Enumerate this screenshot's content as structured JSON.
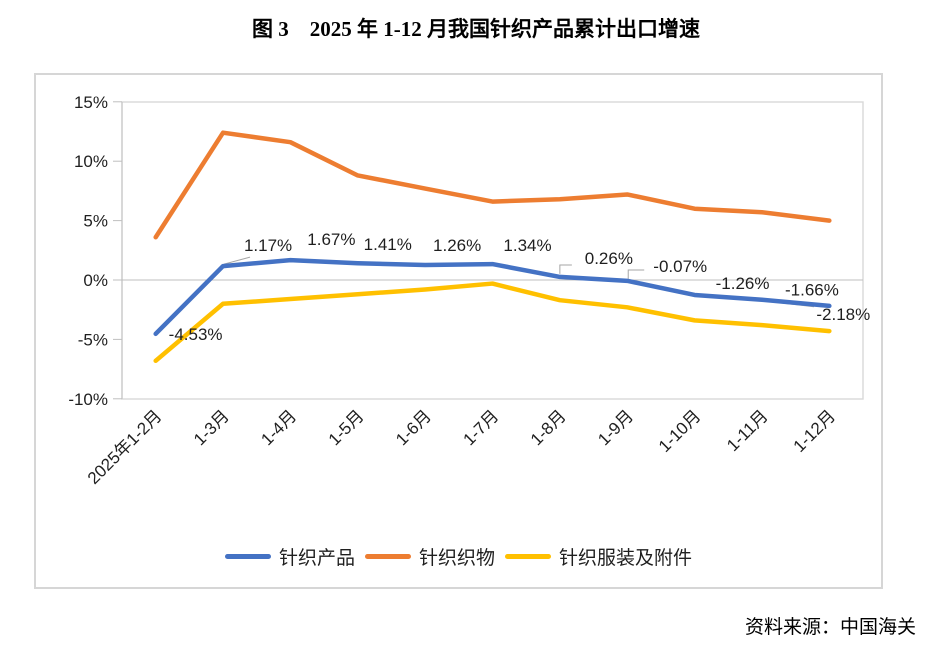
{
  "title": "图 3　2025 年 1-12 月我国针织产品累计出口增速",
  "source": "资料来源：中国海关",
  "chart_data": {
    "type": "line",
    "title": "图 3　2025 年 1-12 月我国针织产品累计出口增速",
    "categories": [
      "2025年1-2月",
      "1-3月",
      "1-4月",
      "1-5月",
      "1-6月",
      "1-7月",
      "1-8月",
      "1-9月",
      "1-10月",
      "1-11月",
      "1-12月"
    ],
    "series": [
      {
        "name": "针织产品",
        "color": "#4472C4",
        "values": [
          -4.53,
          1.17,
          1.67,
          1.41,
          1.26,
          1.34,
          0.26,
          -0.07,
          -1.26,
          -1.66,
          -2.18
        ],
        "labels": [
          "-4.53%",
          "1.17%",
          "1.67%",
          "1.41%",
          "1.26%",
          "1.34%",
          "0.26%",
          "-0.07%",
          "-1.26%",
          "-1.66%",
          "-2.18%"
        ]
      },
      {
        "name": "针织织物",
        "color": "#ED7D31",
        "values": [
          3.6,
          12.4,
          11.6,
          8.8,
          7.7,
          6.6,
          6.8,
          7.2,
          6.0,
          5.7,
          5.0
        ],
        "labels": []
      },
      {
        "name": "针织服装及附件",
        "color": "#FFC000",
        "values": [
          -6.8,
          -2.0,
          -1.6,
          -1.2,
          -0.8,
          -0.3,
          -1.7,
          -2.3,
          -3.4,
          -3.8,
          -4.3
        ],
        "labels": []
      }
    ],
    "xlabel": "",
    "ylabel": "",
    "ylim": [
      -10,
      15
    ],
    "yticks": [
      {
        "value": 15,
        "label": "15%"
      },
      {
        "value": 10,
        "label": "10%"
      },
      {
        "value": 5,
        "label": "5%"
      },
      {
        "value": 0,
        "label": "0%"
      },
      {
        "value": -5,
        "label": "-5%"
      },
      {
        "value": -10,
        "label": "-10%"
      }
    ],
    "grid": false,
    "zero_axis_line": true,
    "legend_position": "bottom",
    "axis_color": "#BFBFBF",
    "border_color": "#D9D9D9",
    "leader_color": "#A6A6A6",
    "label_color": "#1f1f1f"
  }
}
